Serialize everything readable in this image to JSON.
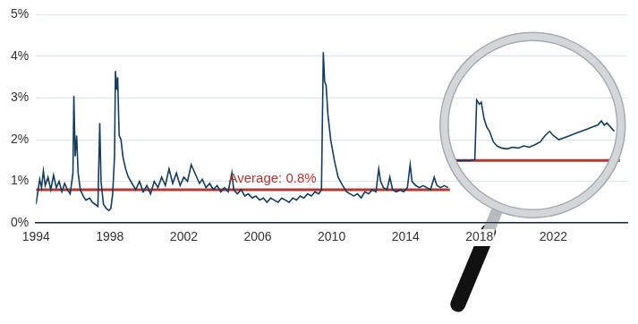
{
  "chart_data": {
    "type": "line",
    "series": [
      {
        "color": "#133c5e",
        "x": [
          1994.0,
          1994.1,
          1994.2,
          1994.3,
          1994.4,
          1994.5,
          1994.65,
          1994.8,
          1994.95,
          1995.1,
          1995.25,
          1995.4,
          1995.55,
          1995.7,
          1995.85,
          1996.0,
          1996.05,
          1996.12,
          1996.2,
          1996.28,
          1996.4,
          1996.55,
          1996.7,
          1996.9,
          1997.05,
          1997.2,
          1997.35,
          1997.45,
          1997.52,
          1997.65,
          1997.8,
          1997.95,
          1998.05,
          1998.15,
          1998.25,
          1998.3,
          1998.36,
          1998.42,
          1998.5,
          1998.6,
          1998.7,
          1998.85,
          1999.0,
          1999.2,
          1999.4,
          1999.6,
          1999.8,
          2000.0,
          2000.2,
          2000.4,
          2000.6,
          2000.8,
          2001.0,
          2001.2,
          2001.4,
          2001.6,
          2001.8,
          2002.0,
          2002.2,
          2002.4,
          2002.55,
          2002.7,
          2002.85,
          2003.0,
          2003.2,
          2003.4,
          2003.6,
          2003.8,
          2004.0,
          2004.2,
          2004.4,
          2004.6,
          2004.7,
          2004.9,
          2005.1,
          2005.3,
          2005.5,
          2005.7,
          2005.9,
          2006.1,
          2006.3,
          2006.5,
          2006.7,
          2006.9,
          2007.1,
          2007.3,
          2007.5,
          2007.7,
          2007.9,
          2008.1,
          2008.3,
          2008.5,
          2008.7,
          2008.9,
          2009.1,
          2009.3,
          2009.45,
          2009.55,
          2009.62,
          2009.7,
          2009.8,
          2009.95,
          2010.15,
          2010.35,
          2010.6,
          2010.8,
          2011.0,
          2011.2,
          2011.4,
          2011.6,
          2011.8,
          2012.0,
          2012.2,
          2012.4,
          2012.55,
          2012.65,
          2012.8,
          2013.0,
          2013.15,
          2013.3,
          2013.5,
          2013.7,
          2013.9,
          2014.1,
          2014.25,
          2014.35,
          2014.55,
          2014.75,
          2014.95,
          2015.15,
          2015.35,
          2015.55,
          2015.7,
          2015.9,
          2016.1,
          2016.3,
          2016.4,
          2016.45,
          2017.0,
          2017.5,
          2017.75,
          2017.85,
          2018.0,
          2018.1,
          2018.25,
          2018.4,
          2018.55,
          2018.75,
          2018.95,
          2019.2,
          2019.5,
          2019.8,
          2020.1,
          2020.4,
          2020.7,
          2021.0,
          2021.3,
          2021.55,
          2021.8,
          2022.0,
          2022.3,
          2022.6,
          2022.9,
          2023.2,
          2023.5,
          2023.8,
          2024.1,
          2024.4,
          2024.6,
          2024.75,
          2024.9,
          2025.1,
          2025.3
        ],
        "values": [
          0.45,
          0.75,
          1.05,
          0.85,
          1.25,
          0.9,
          1.1,
          0.8,
          1.15,
          0.85,
          1.0,
          0.75,
          0.95,
          0.8,
          0.7,
          1.2,
          3.05,
          1.6,
          2.1,
          1.2,
          0.8,
          0.65,
          0.55,
          0.6,
          0.5,
          0.45,
          0.4,
          2.4,
          1.0,
          0.45,
          0.35,
          0.3,
          0.35,
          0.7,
          1.6,
          3.65,
          3.2,
          3.5,
          2.1,
          2.0,
          1.6,
          1.3,
          1.1,
          0.95,
          0.8,
          1.0,
          0.75,
          0.9,
          0.7,
          1.0,
          0.85,
          1.1,
          0.9,
          1.3,
          0.95,
          1.2,
          0.9,
          1.1,
          1.0,
          1.4,
          1.25,
          1.1,
          0.95,
          1.05,
          0.85,
          0.95,
          0.8,
          0.9,
          0.75,
          0.85,
          0.75,
          1.2,
          0.8,
          0.7,
          0.8,
          0.65,
          0.7,
          0.6,
          0.65,
          0.55,
          0.6,
          0.5,
          0.6,
          0.55,
          0.5,
          0.6,
          0.55,
          0.5,
          0.6,
          0.55,
          0.65,
          0.6,
          0.7,
          0.65,
          0.75,
          0.7,
          0.8,
          4.1,
          3.4,
          3.3,
          2.6,
          2.0,
          1.5,
          1.1,
          0.9,
          0.75,
          0.7,
          0.65,
          0.7,
          0.6,
          0.75,
          0.7,
          0.8,
          0.75,
          1.3,
          1.0,
          0.85,
          0.8,
          1.1,
          0.8,
          0.75,
          0.8,
          0.75,
          0.85,
          1.4,
          1.0,
          0.9,
          0.85,
          0.9,
          0.85,
          0.8,
          1.1,
          0.9,
          0.85,
          0.9,
          0.85,
          null,
          1.5,
          1.5,
          1.5,
          1.52,
          2.95,
          2.85,
          2.9,
          2.5,
          2.3,
          2.2,
          1.95,
          1.85,
          1.8,
          1.78,
          1.82,
          1.8,
          1.85,
          1.82,
          1.88,
          1.95,
          2.1,
          2.2,
          2.1,
          2.0,
          2.05,
          2.1,
          2.15,
          2.2,
          2.25,
          2.3,
          2.35,
          2.45,
          2.35,
          2.4,
          2.3,
          2.2
        ]
      },
      {
        "color": "#b23a34",
        "x": [
          1994,
          2016.4,
          2016.42,
          2016.45,
          2025.6
        ],
        "values": [
          0.8,
          0.8,
          null,
          1.5,
          1.5
        ]
      }
    ],
    "xlim": [
      1994,
      2026
    ],
    "xticks": [
      1994,
      1998,
      2002,
      2006,
      2010,
      2014,
      2018,
      2022
    ],
    "ylim": [
      0,
      5
    ],
    "yticks": [
      {
        "value": 0,
        "label": "0%"
      },
      {
        "value": 1,
        "label": "1%"
      },
      {
        "value": 2,
        "label": "2%"
      },
      {
        "value": 3,
        "label": "3%"
      },
      {
        "value": 4,
        "label": "4%"
      },
      {
        "value": 5,
        "label": "5%"
      }
    ],
    "grid": "y",
    "annotations": [
      {
        "text": "Average: 0.8%",
        "value": 0.8,
        "color": "#b23a34"
      }
    ]
  }
}
